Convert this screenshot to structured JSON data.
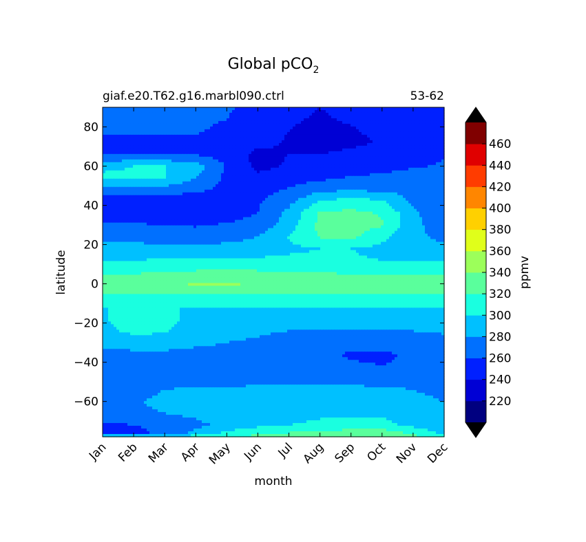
{
  "chart_data": {
    "type": "heatmap",
    "title_main": "Global pCO",
    "title_sub": "2",
    "subtitle_left": "giaf.e20.T62.g16.marbl090.ctrl",
    "subtitle_right": "53-62",
    "xlabel": "month",
    "ylabel": "latitude",
    "colorbar_label": "ppmv",
    "x_ticks": [
      "Jan",
      "Feb",
      "Mar",
      "Apr",
      "May",
      "Jun",
      "Jul",
      "Aug",
      "Sep",
      "Oct",
      "Nov",
      "Dec"
    ],
    "y_ticks": [
      80,
      60,
      40,
      20,
      0,
      -20,
      -40,
      -60
    ],
    "ylim": [
      -78,
      90
    ],
    "xlim": [
      0,
      11
    ],
    "levels": [
      200,
      220,
      240,
      260,
      280,
      300,
      320,
      340,
      360,
      380,
      400,
      420,
      440,
      460,
      480
    ],
    "colorbar_tick_labels": [
      "220",
      "240",
      "260",
      "280",
      "300",
      "320",
      "340",
      "360",
      "380",
      "400",
      "420",
      "440",
      "460"
    ],
    "colors": [
      "#000080",
      "#0000d5",
      "#0020ff",
      "#0070ff",
      "#00c0ff",
      "#1affe0",
      "#5aff9c",
      "#9cff5a",
      "#e0ff1a",
      "#ffd000",
      "#ff8600",
      "#ff3c00",
      "#e00000",
      "#800000"
    ],
    "under_color": "#000000",
    "over_color": "#000000",
    "latitudes": [
      90,
      84,
      78,
      72,
      66,
      60,
      54,
      48,
      42,
      36,
      30,
      24,
      18,
      12,
      6,
      0,
      -6,
      -12,
      -18,
      -24,
      -30,
      -36,
      -42,
      -48,
      -54,
      -60,
      -66,
      -72,
      -76,
      -78
    ],
    "values": [
      [
        265,
        265,
        265,
        265,
        262,
        255,
        245,
        240,
        245,
        250,
        255,
        260
      ],
      [
        265,
        265,
        265,
        265,
        260,
        252,
        242,
        238,
        242,
        248,
        252,
        258
      ],
      [
        262,
        262,
        262,
        262,
        255,
        250,
        240,
        236,
        238,
        245,
        250,
        255
      ],
      [
        255,
        255,
        255,
        255,
        252,
        245,
        238,
        232,
        235,
        242,
        245,
        250
      ],
      [
        258,
        258,
        258,
        258,
        250,
        235,
        240,
        240,
        245,
        250,
        255,
        258
      ],
      [
        295,
        300,
        300,
        290,
        258,
        235,
        242,
        245,
        248,
        252,
        258,
        262
      ],
      [
        305,
        305,
        300,
        280,
        255,
        245,
        250,
        255,
        262,
        265,
        270,
        265
      ],
      [
        275,
        275,
        272,
        265,
        255,
        252,
        262,
        275,
        278,
        275,
        275,
        270
      ],
      [
        245,
        245,
        245,
        245,
        250,
        258,
        275,
        300,
        310,
        302,
        275,
        265
      ],
      [
        248,
        248,
        246,
        245,
        250,
        260,
        285,
        322,
        325,
        318,
        285,
        262
      ],
      [
        262,
        262,
        260,
        258,
        262,
        268,
        290,
        325,
        330,
        322,
        285,
        270
      ],
      [
        275,
        275,
        272,
        270,
        275,
        280,
        302,
        322,
        325,
        305,
        285,
        275
      ],
      [
        285,
        285,
        285,
        285,
        285,
        285,
        295,
        300,
        300,
        295,
        285,
        285
      ],
      [
        300,
        300,
        302,
        305,
        305,
        305,
        305,
        305,
        302,
        300,
        300,
        300
      ],
      [
        318,
        318,
        320,
        322,
        322,
        322,
        320,
        320,
        318,
        318,
        318,
        318
      ],
      [
        330,
        330,
        338,
        342,
        342,
        340,
        335,
        330,
        328,
        328,
        330,
        330
      ],
      [
        318,
        318,
        318,
        318,
        318,
        318,
        318,
        318,
        318,
        318,
        318,
        318
      ],
      [
        300,
        300,
        300,
        300,
        300,
        300,
        300,
        300,
        300,
        300,
        300,
        300
      ],
      [
        298,
        310,
        305,
        295,
        290,
        290,
        290,
        290,
        290,
        290,
        290,
        290
      ],
      [
        295,
        305,
        302,
        290,
        285,
        282,
        280,
        280,
        280,
        280,
        280,
        282
      ],
      [
        285,
        290,
        290,
        283,
        280,
        278,
        275,
        272,
        270,
        270,
        272,
        275
      ],
      [
        275,
        275,
        275,
        275,
        275,
        275,
        275,
        272,
        255,
        255,
        265,
        275
      ],
      [
        268,
        268,
        268,
        268,
        268,
        268,
        268,
        268,
        265,
        260,
        265,
        270
      ],
      [
        265,
        265,
        265,
        265,
        268,
        270,
        272,
        272,
        270,
        268,
        265,
        265
      ],
      [
        270,
        272,
        280,
        285,
        285,
        285,
        285,
        285,
        285,
        285,
        280,
        275
      ],
      [
        275,
        278,
        285,
        288,
        288,
        288,
        288,
        288,
        288,
        288,
        285,
        280
      ],
      [
        275,
        275,
        280,
        285,
        292,
        295,
        296,
        298,
        298,
        298,
        290,
        282
      ],
      [
        255,
        260,
        265,
        275,
        285,
        295,
        300,
        302,
        305,
        305,
        295,
        285
      ],
      [
        248,
        255,
        265,
        285,
        305,
        315,
        320,
        328,
        330,
        332,
        315,
        295
      ],
      [
        300,
        300,
        305,
        310,
        320,
        325,
        330,
        338,
        345,
        342,
        325,
        305
      ]
    ]
  }
}
